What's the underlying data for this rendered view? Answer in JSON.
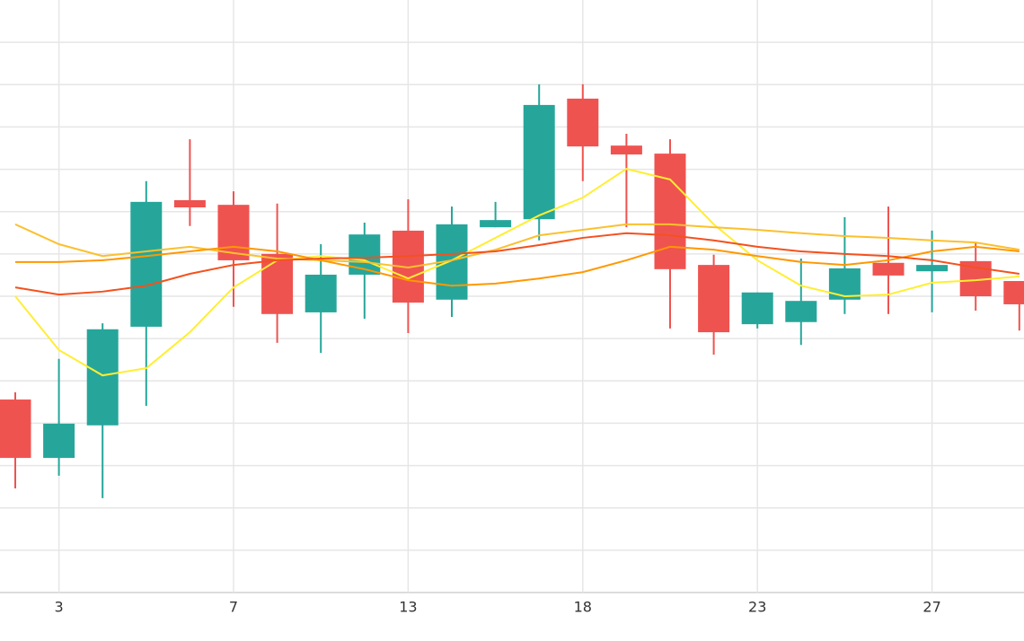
{
  "chart_data": {
    "type": "candlestick",
    "categories": [
      null,
      "3",
      null,
      null,
      null,
      "7",
      null,
      null,
      null,
      "13",
      null,
      null,
      null,
      "18",
      null,
      null,
      null,
      "23",
      null,
      null,
      null,
      "27",
      null,
      null
    ],
    "open": [
      4.56,
      3.18,
      3.95,
      6.28,
      9.27,
      9.16,
      8.0,
      6.62,
      7.51,
      8.55,
      6.92,
      8.63,
      8.82,
      11.67,
      10.56,
      10.37,
      7.74,
      6.34,
      6.39,
      6.92,
      7.79,
      7.59,
      7.83,
      7.36
    ],
    "close": [
      3.18,
      3.99,
      6.22,
      9.23,
      9.1,
      7.85,
      6.58,
      7.51,
      8.46,
      6.85,
      8.7,
      8.8,
      11.52,
      10.54,
      10.35,
      7.64,
      6.15,
      7.09,
      6.89,
      7.66,
      7.49,
      7.74,
      7.0,
      6.81
    ],
    "high": [
      4.73,
      5.52,
      6.36,
      9.72,
      10.71,
      9.48,
      9.19,
      8.23,
      8.74,
      9.29,
      9.12,
      9.23,
      12.01,
      12.01,
      10.84,
      10.71,
      7.98,
      7.09,
      7.89,
      8.87,
      9.12,
      8.55,
      8.27,
      7.36
    ],
    "low": [
      2.46,
      2.76,
      2.23,
      4.41,
      8.66,
      6.75,
      5.9,
      5.66,
      6.47,
      6.13,
      6.51,
      8.63,
      8.32,
      9.72,
      8.63,
      6.24,
      5.62,
      6.24,
      5.85,
      6.58,
      6.58,
      6.62,
      6.66,
      6.19
    ],
    "up_color": "#26a69a",
    "down_color": "#ef5350",
    "lines": [
      {
        "color": "#ffee33",
        "values": [
          7.0,
          5.73,
          5.13,
          5.3,
          6.15,
          7.21,
          7.85,
          7.95,
          7.85,
          7.42,
          7.85,
          8.38,
          8.91,
          9.33,
          10.01,
          9.76,
          8.7,
          7.85,
          7.25,
          7.0,
          7.04,
          7.32,
          7.38,
          7.47
        ]
      },
      {
        "color": "#fbc02d",
        "values": [
          8.7,
          8.23,
          7.95,
          8.06,
          8.17,
          8.02,
          7.89,
          7.85,
          7.81,
          7.68,
          7.85,
          8.1,
          8.44,
          8.57,
          8.7,
          8.7,
          8.63,
          8.57,
          8.49,
          8.42,
          8.38,
          8.32,
          8.27,
          8.1
        ]
      },
      {
        "color": "#ff9800",
        "values": [
          7.81,
          7.81,
          7.85,
          7.95,
          8.06,
          8.17,
          8.06,
          7.85,
          7.64,
          7.38,
          7.25,
          7.3,
          7.42,
          7.57,
          7.85,
          8.17,
          8.1,
          7.95,
          7.81,
          7.74,
          7.85,
          8.06,
          8.17,
          8.06
        ]
      },
      {
        "color": "#f4511e",
        "values": [
          7.21,
          7.04,
          7.11,
          7.25,
          7.53,
          7.74,
          7.85,
          7.89,
          7.91,
          7.95,
          8.0,
          8.06,
          8.21,
          8.38,
          8.49,
          8.44,
          8.32,
          8.17,
          8.06,
          8.0,
          7.95,
          7.85,
          7.68,
          7.53
        ]
      }
    ],
    "ylim": [
      0,
      14
    ],
    "yticks": [
      0,
      1,
      2,
      3,
      4,
      5,
      6,
      7,
      8,
      9,
      10,
      11,
      12,
      13
    ],
    "grid": true
  }
}
